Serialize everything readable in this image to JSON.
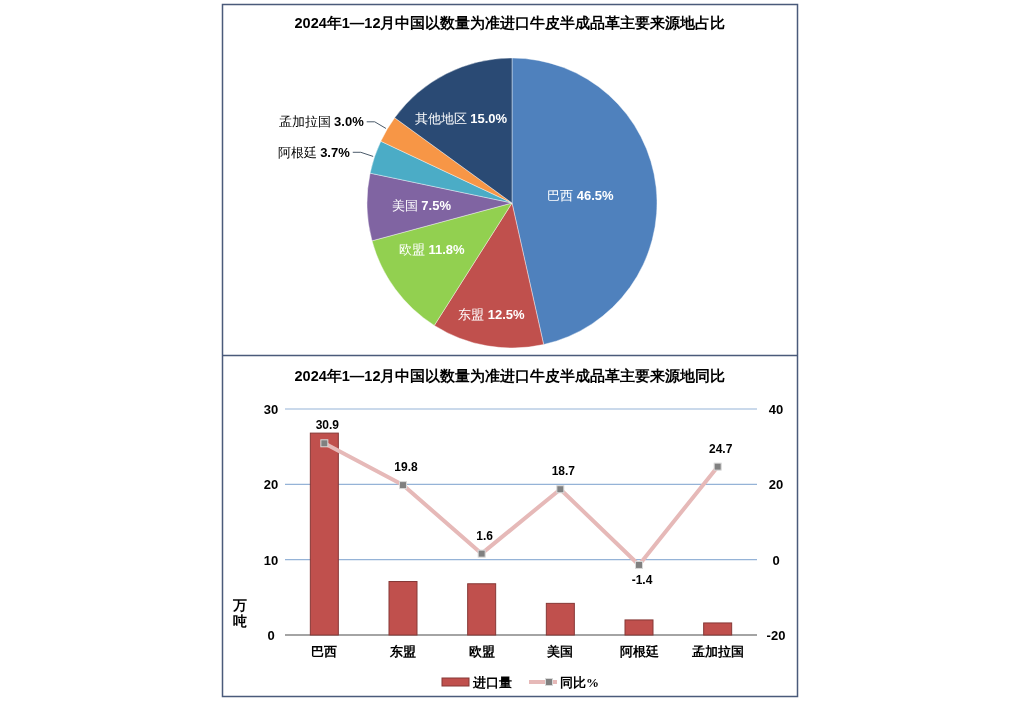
{
  "chart_data": [
    {
      "type": "pie",
      "title": "2024年1—12月中国以数量为准进口牛皮半成品革主要来源地占比",
      "categories": [
        "巴西",
        "东盟",
        "欧盟",
        "美国",
        "阿根廷",
        "孟加拉国",
        "其他地区"
      ],
      "values": [
        46.5,
        12.5,
        11.8,
        7.5,
        3.7,
        3.0,
        15.0
      ],
      "value_labels": [
        "46.5%",
        "12.5%",
        "11.8%",
        "7.5%",
        "3.7%",
        "3.0%",
        "15.0%"
      ],
      "colors": [
        "#4f81bd",
        "#c0504d",
        "#92d050",
        "#8064a2",
        "#4bacc6",
        "#f79646",
        "#2a4a74"
      ]
    },
    {
      "type": "bar",
      "title": "2024年1—12月中国以数量为准进口牛皮半成品革主要来源地同比",
      "categories": [
        "巴西",
        "东盟",
        "欧盟",
        "美国",
        "阿根廷",
        "孟加拉国"
      ],
      "ylabel": "万吨",
      "series": [
        {
          "name": "进口量",
          "color": "#c0504d",
          "values": [
            26.8,
            7.1,
            6.8,
            4.2,
            2.0,
            1.6
          ]
        },
        {
          "name": "同比%",
          "type": "line",
          "axis": "y2",
          "color": "#e6b9b8",
          "values": [
            30.9,
            19.8,
            1.6,
            18.7,
            -1.4,
            24.7
          ],
          "value_labels": [
            "30.9",
            "19.8",
            "1.6",
            "18.7",
            "-1.4",
            "24.7"
          ]
        }
      ],
      "ylim": [
        0,
        30
      ],
      "yticks": [
        0,
        10,
        20,
        30
      ],
      "y2lim": [
        -20,
        40
      ],
      "y2ticks": [
        -20,
        0,
        20,
        40
      ],
      "grid": "y",
      "legend": "bottom",
      "marker": "square"
    }
  ]
}
